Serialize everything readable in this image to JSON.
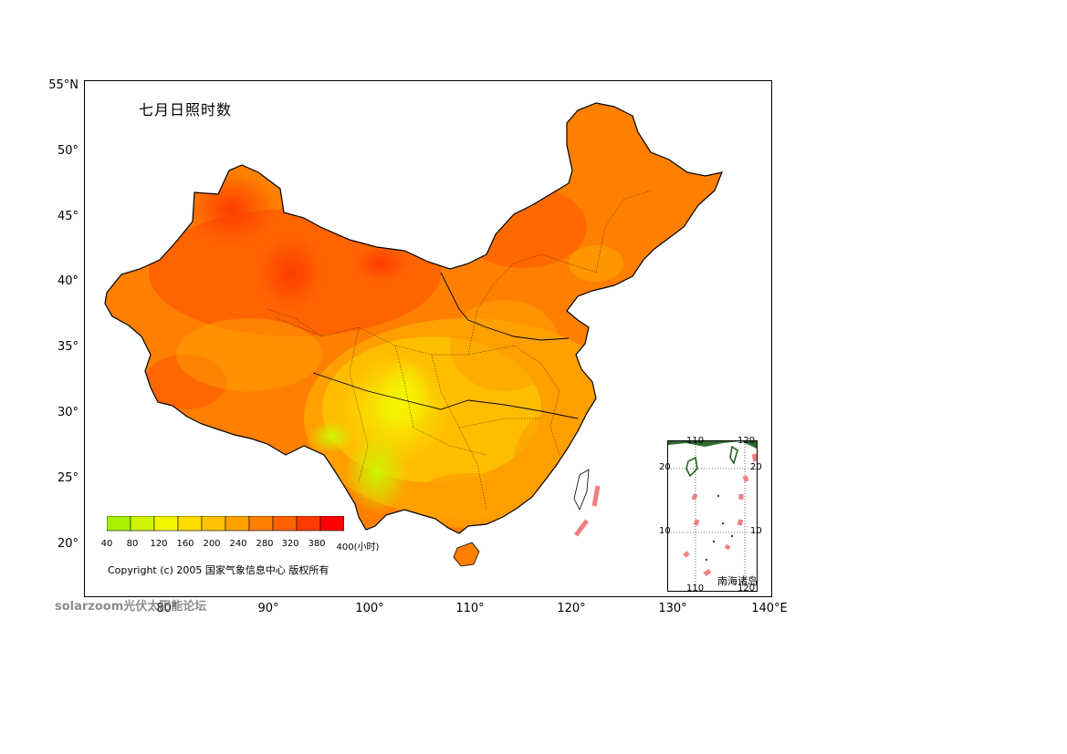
{
  "map": {
    "title": "七月日照时数",
    "lat_labels": [
      "55°N",
      "50°",
      "45°",
      "40°",
      "35°",
      "30°",
      "25°",
      "20°"
    ],
    "lon_labels": [
      "80°",
      "90°",
      "100°",
      "110°",
      "120°",
      "130°",
      "140°E"
    ]
  },
  "legend": {
    "ticks": [
      "40",
      "80",
      "120",
      "160",
      "200",
      "240",
      "280",
      "320",
      "380",
      "400(小时)"
    ],
    "colors": [
      "#a6f000",
      "#ccf500",
      "#f5f500",
      "#ffdc00",
      "#ffc000",
      "#ffa000",
      "#ff8000",
      "#ff6000",
      "#ff3c00",
      "#ff0000"
    ]
  },
  "copyright": "Copyright (c) 2005 国家气象信息中心 版权所有",
  "watermark": "solarzoom光伏太阳能论坛",
  "inset": {
    "name": "南海诸岛",
    "lon_labels": [
      "110",
      "120"
    ],
    "lat_labels": [
      "20",
      "10"
    ]
  },
  "colors": {
    "frame": "#000000",
    "boundary": "#000000",
    "inset_land": "#1a5c1a",
    "island_dash": "#f08080"
  }
}
